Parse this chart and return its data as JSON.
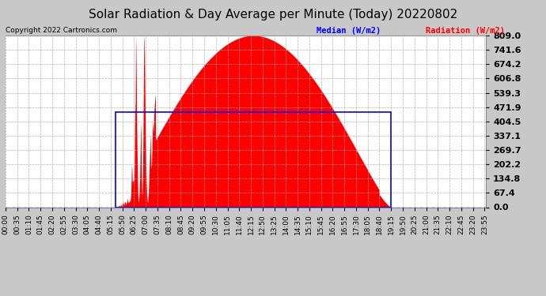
{
  "title": "Solar Radiation & Day Average per Minute (Today) 20220802",
  "copyright": "Copyright 2022 Cartronics.com",
  "legend_median": "Median (W/m2)",
  "legend_radiation": "Radiation (W/m2)",
  "ylim": [
    0.0,
    809.0
  ],
  "yticks": [
    0.0,
    67.4,
    134.8,
    202.2,
    269.7,
    337.1,
    404.5,
    471.9,
    539.3,
    606.8,
    674.2,
    741.6,
    809.0
  ],
  "bg_color": "#c8c8c8",
  "plot_bg_color": "#ffffff",
  "radiation_color": "#ff0000",
  "median_color": "#0000ff",
  "median_value": 449.0,
  "total_minutes": 1440,
  "sunrise_minute": 330,
  "sunset_minute": 1155,
  "x_tick_step": 35,
  "title_fontsize": 11,
  "tick_fontsize": 6.5,
  "ytick_fontsize": 8
}
